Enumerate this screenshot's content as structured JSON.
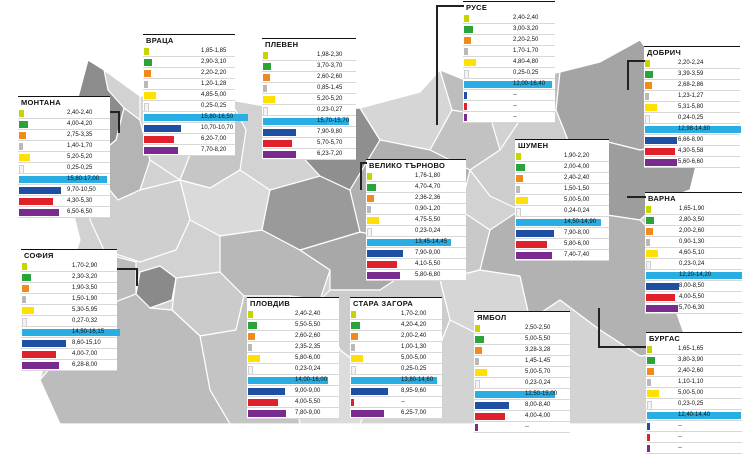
{
  "colors": {
    "row": [
      "#c8d400",
      "#2aa43a",
      "#f08a1c",
      "#b9b9b9",
      "#ffe100",
      "#f3f3f3",
      "#29aee3",
      "#1f4fa3",
      "#e0202a",
      "#7a2b90"
    ],
    "region_light": "#d4d4d4",
    "region_mid": "#b6b6b6",
    "region_dark": "#8f8f8f",
    "outline": "#ffffff"
  },
  "regions": [
    {
      "name": "МОНТАНА",
      "values": [
        "2,40-2,40",
        "4,00-4,20",
        "2,75-3,35",
        "1,40-1,70",
        "5,20-5,20",
        "0,25-0,25",
        "15,80-17,00",
        "9,70-10,50",
        "4,30-5,30",
        "6,50-6,50"
      ]
    },
    {
      "name": "ВРАЦА",
      "values": [
        "1,85-1,85",
        "2,90-3,10",
        "2,20-2,20",
        "1,20-1,28",
        "4,85-5,00",
        "0,25-0,25",
        "15,80-16,50",
        "10,70-10,70",
        "6,20-7,00",
        "7,70-8,20"
      ]
    },
    {
      "name": "ПЛЕВЕН",
      "values": [
        "1,98-2,30",
        "3,70-3,70",
        "2,60-2,60",
        "0,85-1,45",
        "5,20-5,20",
        "0,23-0,27",
        "15,70-15,70",
        "7,90-9,80",
        "5,70-5,70",
        "6,23-7,20"
      ]
    },
    {
      "name": "РУСЕ",
      "values": [
        "2,40-2,40",
        "3,00-3,20",
        "2,20-2,50",
        "1,70-1,70",
        "4,80-4,80",
        "0,25-0,25",
        "12,00-16,40",
        "--",
        "--",
        "--"
      ]
    },
    {
      "name": "ДОБРИЧ",
      "values": [
        "2,20-2,24",
        "3,39-3,59",
        "2,68-2,86",
        "1,23-1,27",
        "5,31-5,80",
        "0,24-0,25",
        "12,98-14,80",
        "6,66-8,90",
        "4,30-5,58",
        "5,60-6,60"
      ]
    },
    {
      "name": "ВЕЛИКО ТЪРНОВО",
      "values": [
        "1,76-1,80",
        "4,70-4,70",
        "2,36-2,36",
        "0,90-1,20",
        "4,75-5,50",
        "0,23-0,24",
        "13,45-14,45",
        "7,90-9,00",
        "4,10-5,50",
        "5,80-6,80"
      ]
    },
    {
      "name": "ШУМЕН",
      "values": [
        "1,90-2,20",
        "2,00-4,00",
        "2,40-2,40",
        "1,50-1,50",
        "5,00-5,00",
        "0,24-0,24",
        "14,50-14,90",
        "7,90-8,00",
        "5,80-6,00",
        "7,40-7,40"
      ]
    },
    {
      "name": "ВАРНА",
      "values": [
        "1,65-1,90",
        "2,80-3,50",
        "2,00-2,60",
        "0,90-1,30",
        "4,60-5,10",
        "0,23-0,24",
        "12,20-14,20",
        "8,00-8,50",
        "4,00-5,50",
        "5,70-6,30"
      ]
    },
    {
      "name": "СОФИЯ",
      "values": [
        "1,70-2,90",
        "2,30-3,20",
        "1,90-3,50",
        "1,50-1,90",
        "5,30-5,95",
        "0,27-0,32",
        "14,50-16,15",
        "8,60-15,10",
        "4,00-7,00",
        "6,28-8,00"
      ]
    },
    {
      "name": "ПЛОВДИВ",
      "values": [
        "2,40-2,40",
        "5,50-5,50",
        "2,60-2,60",
        "2,35-2,35",
        "5,80-6,00",
        "0,23-0,24",
        "14,00-16,00",
        "9,00-9,00",
        "4,00-5,50",
        "7,80-9,00"
      ]
    },
    {
      "name": "СТАРА ЗАГОРА",
      "values": [
        "1,70-2,00",
        "4,20-4,20",
        "2,00-2,40",
        "1,00-1,30",
        "5,00-5,00",
        "0,25-0,25",
        "13,80-14,60",
        "8,95-9,60",
        "--",
        "6,25-7,00"
      ]
    },
    {
      "name": "ЯМБОЛ",
      "values": [
        "2,50-2,50",
        "5,00-5,50",
        "3,28-3,28",
        "1,45-1,45",
        "5,00-5,70",
        "0,23-0,24",
        "12,50-15,00",
        "8,00-8,40",
        "4,00-4,00",
        "--"
      ]
    },
    {
      "name": "БУРГАС",
      "values": [
        "1,65-1,65",
        "3,80-3,90",
        "2,40-2,60",
        "1,10-1,10",
        "5,00-5,00",
        "0,23-0,25",
        "12,40-14,40",
        "--",
        "--",
        "--"
      ]
    }
  ]
}
